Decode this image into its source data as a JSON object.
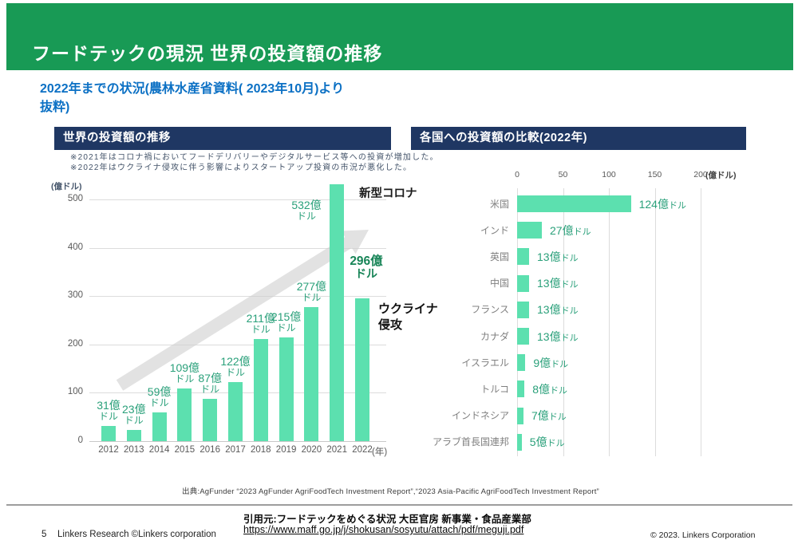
{
  "header": {
    "title": "フードテックの現況 世界の投資額の推移"
  },
  "subtitle": {
    "line1": "2022年までの状況(農林水産省資料( 2023年10月)より",
    "line2": "抜粋)"
  },
  "left_panel": {
    "title": "世界の投資額の推移",
    "note1": "※2021年はコロナ禍においてフードデリバリーやデジタルサービス等への投資が増加した。",
    "note2": "※2022年はウクライナ侵攻に伴う影響によりスタートアップ投資の市況が悪化した。",
    "unit_label": "(億ドル)"
  },
  "right_panel": {
    "title": "各国への投資額の比較(2022年)",
    "unit_label": "(億ドル)"
  },
  "annotations": {
    "covid": "新型コロナ",
    "label_2021": [
      "532億",
      "ドル"
    ],
    "label_2022": [
      "296億",
      "ドル"
    ],
    "ukraine": [
      "ウクライナ",
      "侵攻"
    ]
  },
  "colors": {
    "header_green": "#189a55",
    "navy": "#1f3763",
    "bar_mint": "#5ce0af",
    "value_green": "#2aa07a",
    "bold_green": "#178457",
    "subtitle_blue": "#0b70c4",
    "arrow_gray": "#cfcfcf"
  },
  "chart_data": [
    {
      "type": "bar",
      "title": "世界の投資額の推移",
      "categories": [
        "2012",
        "2013",
        "2014",
        "2015",
        "2016",
        "2017",
        "2018",
        "2019",
        "2020",
        "2021",
        "2022"
      ],
      "values": [
        31,
        23,
        59,
        109,
        87,
        122,
        211,
        215,
        277,
        532,
        296
      ],
      "value_labels": [
        "31億ドル",
        "23億ドル",
        "59億ドル",
        "109億ドル",
        "87億ドル",
        "122億ドル",
        "211億ドル",
        "215億ドル",
        "277億ドル",
        "532億ドル",
        "296億ドル"
      ],
      "xlabel": "(年)",
      "ylabel": "(億ドル)",
      "ylim": [
        0,
        500
      ],
      "yticks": [
        0,
        100,
        200,
        300,
        400,
        500
      ],
      "grid": true,
      "annotations": [
        "新型コロナ",
        "ウクライナ侵攻"
      ]
    },
    {
      "type": "bar",
      "orientation": "horizontal",
      "title": "各国への投資額の比較(2022年)",
      "categories": [
        "米国",
        "インド",
        "英国",
        "中国",
        "フランス",
        "カナダ",
        "イスラエル",
        "トルコ",
        "インドネシア",
        "アラブ首長国連邦"
      ],
      "values": [
        124,
        27,
        13,
        13,
        13,
        13,
        9,
        8,
        7,
        5
      ],
      "value_labels": [
        "124億ドル",
        "27億ドル",
        "13億ドル",
        "13億ドル",
        "13億ドル",
        "13億ドル",
        "9億ドル",
        "8億ドル",
        "7億ドル",
        "5億ドル"
      ],
      "xlabel": "(億ドル)",
      "xlim": [
        0,
        200
      ],
      "xticks": [
        0,
        50,
        100,
        150,
        200
      ],
      "grid": true
    }
  ],
  "source_line": "出典:AgFunder “2023 AgFunder AgriFoodTech Investment Report”,“2023 Asia-Pacific AgriFoodTech Investment Report”",
  "footer": {
    "page": "5",
    "left": "Linkers Research ©Linkers corporation",
    "cite_title": "引用元:フードテックをめぐる状況 大臣官房 新事業・食品産業部",
    "cite_url": "https://www.maff.go.jp/j/shokusan/sosyutu/attach/pdf/meguji.pdf",
    "right": "© 2023. Linkers Corporation"
  }
}
